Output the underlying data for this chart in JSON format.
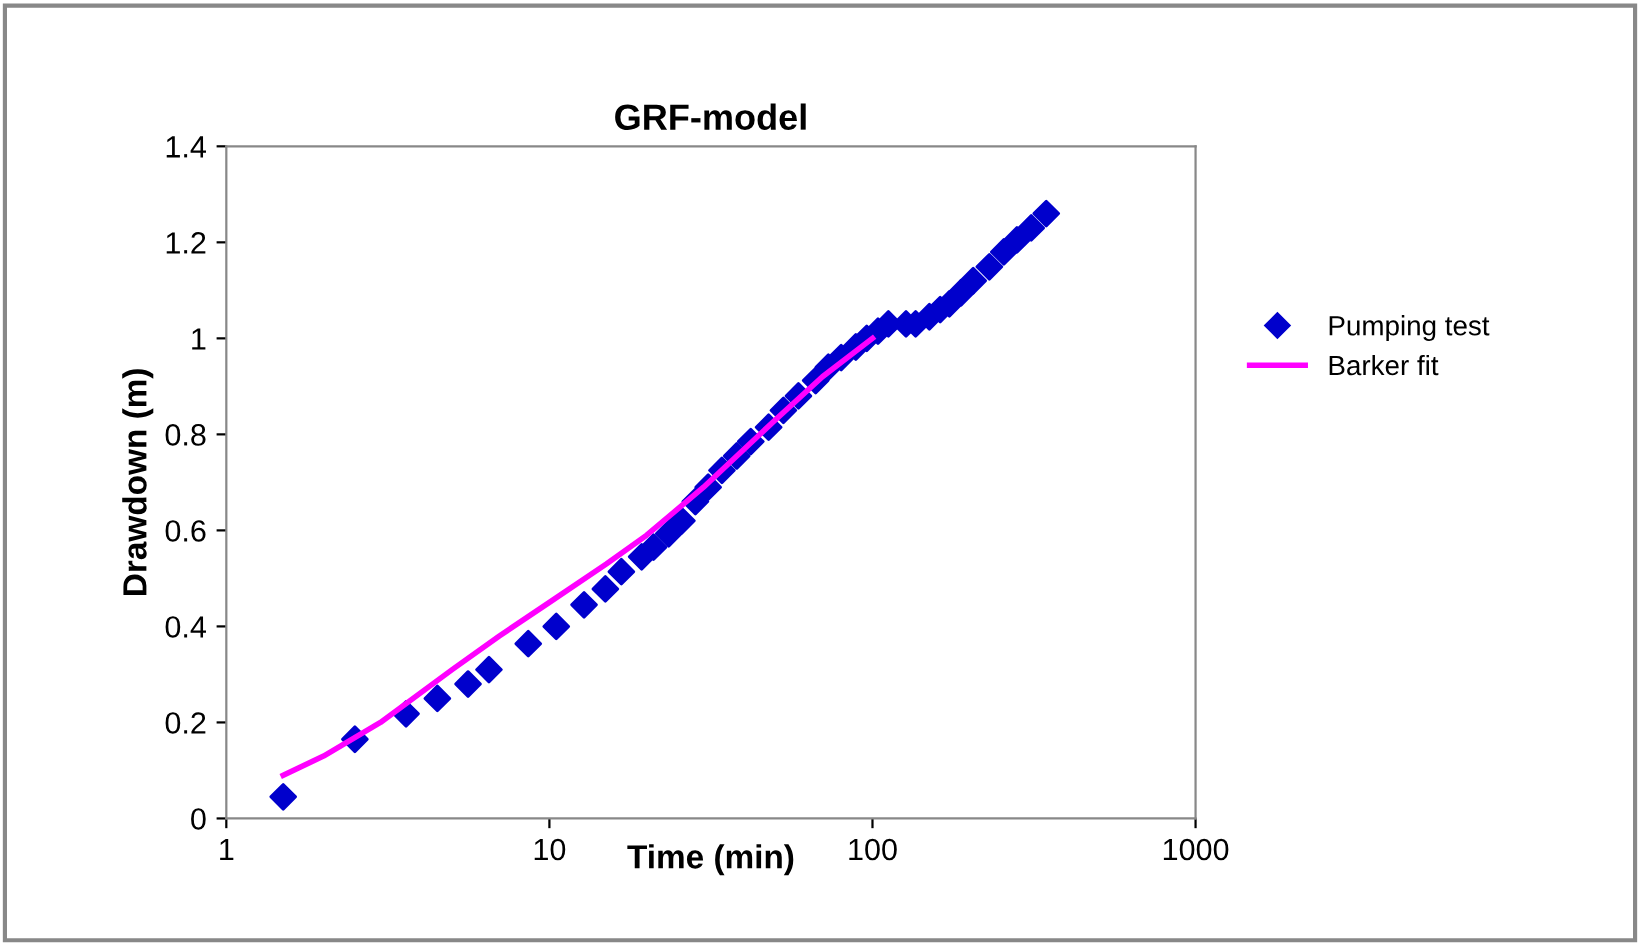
{
  "chart_data": {
    "type": "scatter",
    "title": "GRF-model",
    "xlabel": "Time (min)",
    "ylabel": "Drawdown (m)",
    "log": "x",
    "xlim": [
      1,
      1000
    ],
    "xticks": [
      1,
      10,
      100,
      1000
    ],
    "ylim": [
      0,
      1.4
    ],
    "yticks": [
      0,
      0.2,
      0.4,
      0.6,
      0.8,
      1,
      1.2,
      1.4
    ],
    "grid": false,
    "legend": "right",
    "series": [
      {
        "name": "Pumping test",
        "color": "#0000cc",
        "marker": "diamond",
        "x": [
          1.5,
          2.5,
          3.6,
          4.5,
          5.6,
          6.5,
          8.6,
          10.5,
          12.8,
          14.9,
          16.7,
          19.3,
          21,
          23.4,
          25.7,
          28.3,
          31,
          34.2,
          38,
          42,
          47.7,
          53,
          59,
          66.7,
          73,
          80,
          88.8,
          96,
          104,
          112,
          127,
          136,
          150,
          162,
          173,
          188,
          205,
          230,
          255,
          280,
          310,
          345
        ],
        "values": [
          0.045,
          0.165,
          0.218,
          0.25,
          0.28,
          0.31,
          0.364,
          0.4,
          0.445,
          0.478,
          0.514,
          0.545,
          0.565,
          0.593,
          0.62,
          0.66,
          0.69,
          0.725,
          0.755,
          0.785,
          0.815,
          0.85,
          0.88,
          0.912,
          0.94,
          0.96,
          0.982,
          1.0,
          1.015,
          1.03,
          1.03,
          1.03,
          1.045,
          1.06,
          1.072,
          1.095,
          1.12,
          1.149,
          1.18,
          1.205,
          1.23,
          1.26
        ]
      },
      {
        "name": "Barker fit",
        "type": "line",
        "color": "#ff00ff",
        "marker": "none",
        "line_style": "solid",
        "x": [
          1.5,
          2,
          3,
          5,
          7,
          10,
          15,
          20,
          30,
          50,
          70,
          100
        ],
        "values": [
          0.09,
          0.13,
          0.2,
          0.31,
          0.38,
          0.45,
          0.53,
          0.59,
          0.69,
          0.83,
          0.92,
          1.0
        ]
      }
    ]
  }
}
